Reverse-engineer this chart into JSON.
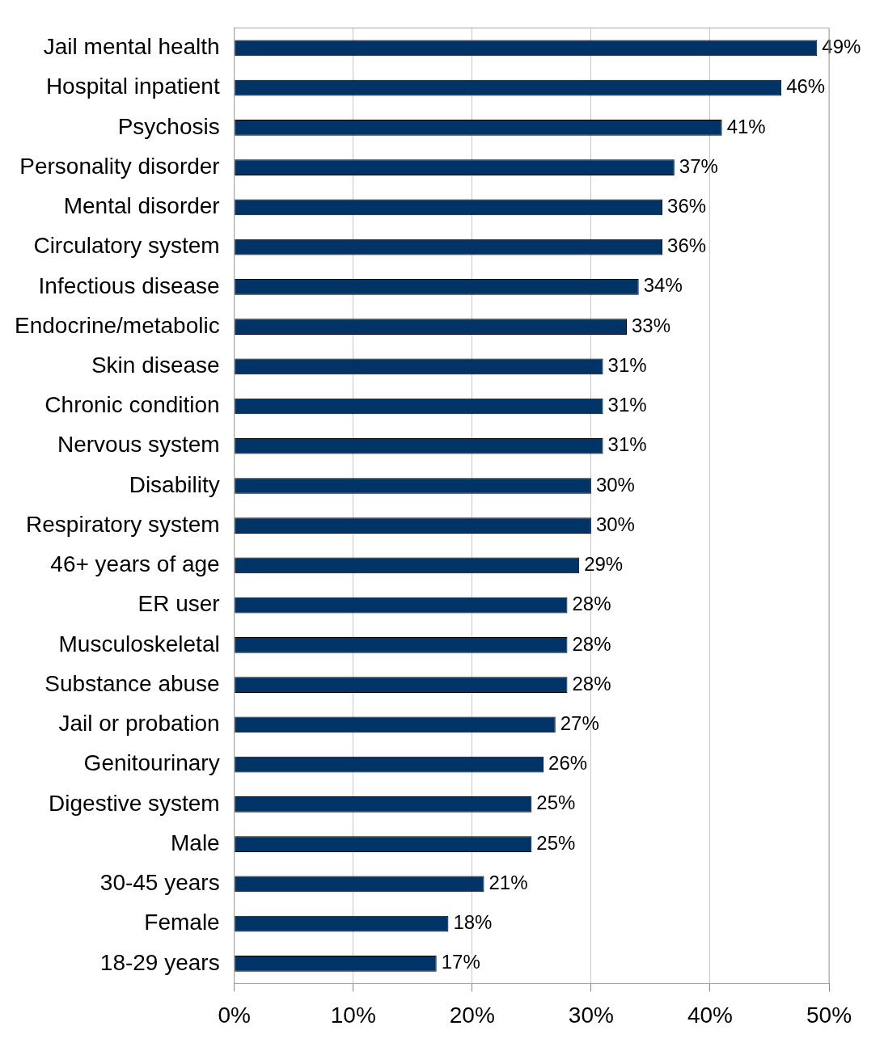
{
  "chart_data": {
    "type": "bar",
    "orientation": "horizontal",
    "categories": [
      "Jail mental health",
      "Hospital inpatient",
      "Psychosis",
      "Personality disorder",
      "Mental disorder",
      "Circulatory system",
      "Infectious disease",
      "Endocrine/metabolic",
      "Skin disease",
      "Chronic condition",
      "Nervous system",
      "Disability",
      "Respiratory system",
      "46+ years of age",
      "ER user",
      "Musculoskeletal",
      "Substance abuse",
      "Jail or probation",
      "Genitourinary",
      "Digestive system",
      "Male",
      "30-45 years",
      "Female",
      "18-29 years"
    ],
    "values": [
      49,
      46,
      41,
      37,
      36,
      36,
      34,
      33,
      31,
      31,
      31,
      30,
      30,
      29,
      28,
      28,
      28,
      27,
      26,
      25,
      25,
      21,
      18,
      17
    ],
    "color": "#003366",
    "xlim": [
      0,
      50
    ],
    "xticks": [
      {
        "value": 0,
        "label": "0%"
      },
      {
        "value": 10,
        "label": "10%"
      },
      {
        "value": 20,
        "label": "20%"
      },
      {
        "value": 30,
        "label": "30%"
      },
      {
        "value": 40,
        "label": "40%"
      },
      {
        "value": 50,
        "label": "50%"
      }
    ],
    "value_labels": [
      "49%",
      "46%",
      "41%",
      "37%",
      "36%",
      "36%",
      "34%",
      "33%",
      "31%",
      "31%",
      "31%",
      "30%",
      "30%",
      "29%",
      "28%",
      "28%",
      "28%",
      "27%",
      "26%",
      "25%",
      "25%",
      "21%",
      "18%",
      "17%"
    ],
    "grid": "x",
    "legend": false
  }
}
